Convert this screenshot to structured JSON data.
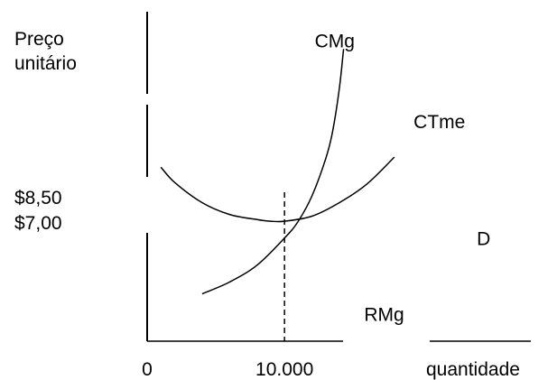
{
  "chart_data": {
    "type": "line",
    "title": "",
    "ylabel_lines": [
      "Preço",
      "unitário"
    ],
    "xlabel": "quantidade",
    "x_ticks": [
      {
        "value": 0,
        "label": "0"
      },
      {
        "value": 10000,
        "label": "10.000"
      }
    ],
    "y_ticks": [
      {
        "value": 8.5,
        "label": "$8,50"
      },
      {
        "value": 7.0,
        "label": "$7,00"
      }
    ],
    "xlim": [
      0,
      28000
    ],
    "ylim": [
      0,
      19.5
    ],
    "vline": {
      "x": 10000,
      "style": "dashed"
    },
    "grid": false,
    "series": [
      {
        "name": "CMg",
        "x": [
          4000,
          6000,
          8000,
          10000,
          11000,
          12000,
          13000,
          13500,
          14000,
          14300
        ],
        "y": [
          2.8,
          3.5,
          4.5,
          6.1,
          7.1,
          8.6,
          10.8,
          12.4,
          15.0,
          17.3
        ]
      },
      {
        "name": "CTme",
        "x": [
          1000,
          2000,
          4000,
          6000,
          8000,
          9000,
          10000,
          12000,
          14000,
          16000,
          18000
        ],
        "y": [
          10.3,
          9.4,
          8.2,
          7.5,
          7.2,
          7.1,
          7.1,
          7.4,
          8.2,
          9.3,
          10.9
        ]
      }
    ],
    "text_labels": [
      {
        "text": "CMg",
        "x": 12200,
        "y": 17.4
      },
      {
        "text": "CTme",
        "x": 19400,
        "y": 12.6
      },
      {
        "text": "D",
        "x": 24000,
        "y": 5.7
      },
      {
        "text": "RMg",
        "x": 15800,
        "y": 1.2
      }
    ],
    "colors": {
      "line": "#000000",
      "background": "#ffffff"
    }
  }
}
